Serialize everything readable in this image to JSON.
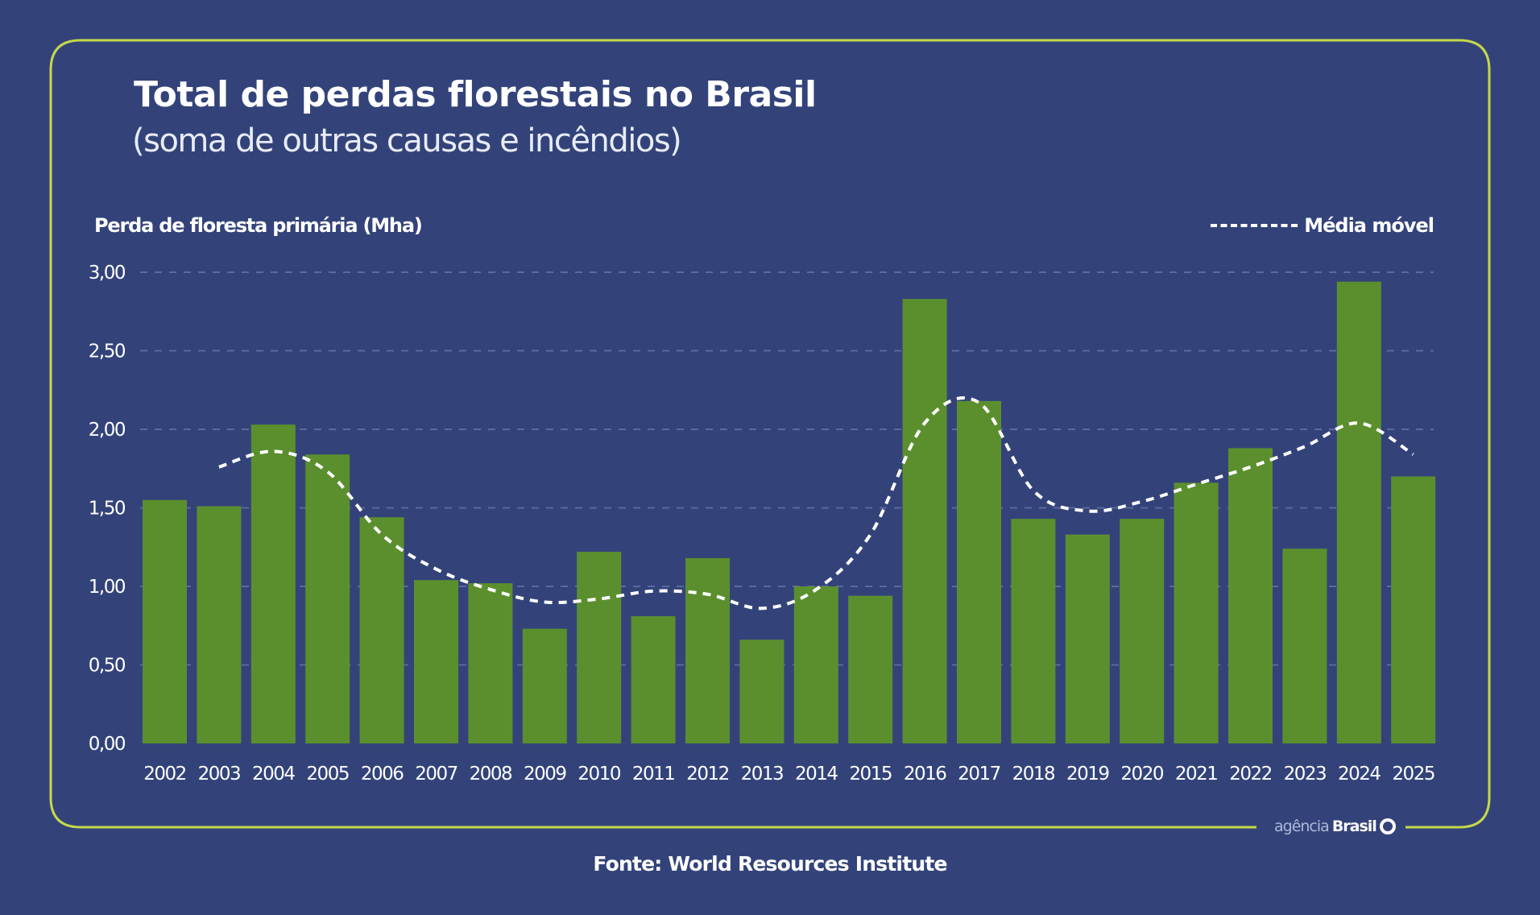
{
  "chart_data": {
    "type": "bar",
    "title": "Total de perdas florestais no Brasil",
    "subtitle": "(soma de outras causas e incêndios)",
    "ylabel": "Perda de floresta primária (Mha)",
    "xlabel": "",
    "ylim": [
      0,
      3
    ],
    "yticks": [
      "0,00",
      "0,50",
      "1,00",
      "1,50",
      "2,00",
      "2,50",
      "3,00"
    ],
    "ytick_values": [
      0,
      0.5,
      1,
      1.5,
      2,
      2.5,
      3
    ],
    "grid": "horizontal dashed",
    "legend_position": "top-right",
    "categories": [
      "2002",
      "2003",
      "2004",
      "2005",
      "2006",
      "2007",
      "2008",
      "2009",
      "2010",
      "2011",
      "2012",
      "2013",
      "2014",
      "2015",
      "2016",
      "2017",
      "2018",
      "2019",
      "2020",
      "2021",
      "2022",
      "2023",
      "2024",
      "2025"
    ],
    "values": [
      1.55,
      1.51,
      2.03,
      1.84,
      1.44,
      1.04,
      1.02,
      0.73,
      1.22,
      0.81,
      1.18,
      0.66,
      1.0,
      0.94,
      2.83,
      2.18,
      1.43,
      1.33,
      1.43,
      1.66,
      1.88,
      1.24,
      2.94,
      1.7
    ],
    "moving_average": {
      "name": "Média móvel",
      "values": [
        null,
        1.76,
        1.86,
        1.73,
        1.33,
        1.11,
        0.98,
        0.9,
        0.92,
        0.97,
        0.95,
        0.86,
        0.98,
        1.33,
        2.04,
        2.17,
        1.61,
        1.48,
        1.54,
        1.65,
        1.76,
        1.89,
        2.04,
        1.84
      ]
    },
    "colors": {
      "bar": "#5b8f2e",
      "line": "#ffffff",
      "background": "#33437a",
      "frame": "#c5d84a",
      "grid": "#5a6a9c"
    }
  },
  "source": "Fonte:  World Resources Institute",
  "logo": {
    "light": "agência",
    "bold": "Brasil"
  }
}
